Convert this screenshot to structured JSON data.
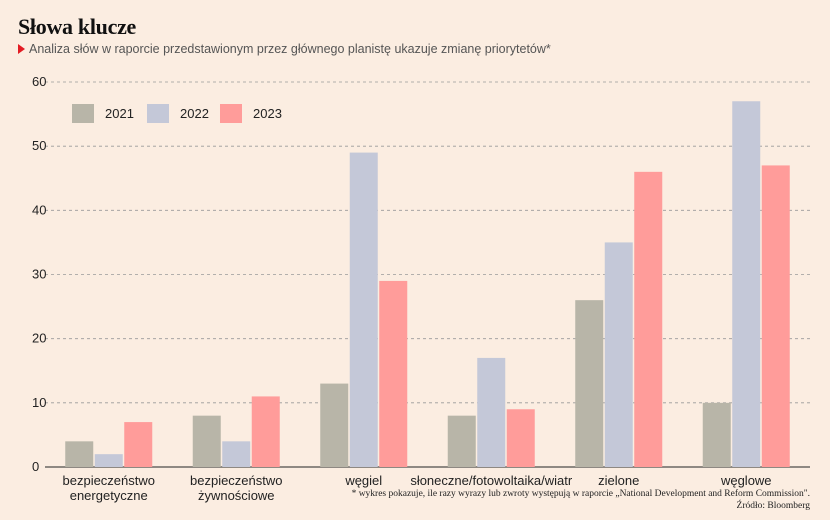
{
  "header": {
    "title": "Słowa klucze",
    "subtitle": "Analiza słów w raporcie przedstawionym przez głównego planistę ukazuje zmianę priorytetów*"
  },
  "footer": {
    "footnote": "* wykres pokazuje, ile razy wyrazy lub zwroty występują w raporcie „National Development and Reform Commission\".",
    "source": "Źródło: Bloomberg"
  },
  "colors": {
    "background": "#fbede1",
    "accent": "#e31b23",
    "series": [
      "#b8b5a8",
      "#c4c8d8",
      "#ff9c9a"
    ]
  },
  "chart_data": {
    "type": "bar",
    "categories": [
      [
        "bezpieczeństwo",
        "energetyczne"
      ],
      [
        "bezpieczeństwo",
        "żywnościowe"
      ],
      [
        "węgiel"
      ],
      [
        "słoneczne/fotowoltaika/wiatr"
      ],
      [
        "zielone"
      ],
      [
        "węglowe"
      ]
    ],
    "series": [
      {
        "name": "2021",
        "values": [
          4,
          8,
          13,
          8,
          26,
          10
        ]
      },
      {
        "name": "2022",
        "values": [
          2,
          4,
          49,
          17,
          35,
          57
        ]
      },
      {
        "name": "2023",
        "values": [
          7,
          11,
          29,
          9,
          46,
          47
        ]
      }
    ],
    "ylim": [
      0,
      60
    ],
    "yticks": [
      0,
      10,
      20,
      30,
      40,
      50,
      60
    ],
    "grid": true,
    "legend_position": "top-left",
    "xlabel": "",
    "ylabel": ""
  }
}
